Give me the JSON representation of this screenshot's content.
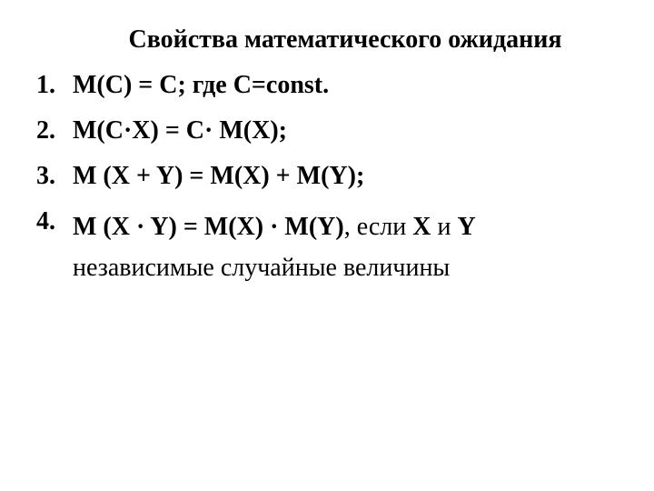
{
  "title": "Свойства математического ожидания",
  "items": [
    {
      "number": "1.",
      "content": "M(C) = C; где C=const."
    },
    {
      "number": "2.",
      "content": "M(C·X) = C· M(X);"
    },
    {
      "number": "3.",
      "content": "M (X + Y) = M(X) + M(Y);"
    },
    {
      "number": "4.",
      "content_bold": "M (X · Y) = M(X) · M(Y)",
      "content_normal_1": ", если ",
      "content_bold_2": "X",
      "content_normal_2": " и ",
      "content_bold_3": "Y",
      "content_line2": "независимые случайные величины"
    }
  ],
  "styling": {
    "background_color": "#ffffff",
    "text_color": "#000000",
    "font_family": "Times New Roman",
    "title_fontsize": 28,
    "body_fontsize": 28,
    "title_weight": "bold",
    "item_weight": "bold"
  }
}
